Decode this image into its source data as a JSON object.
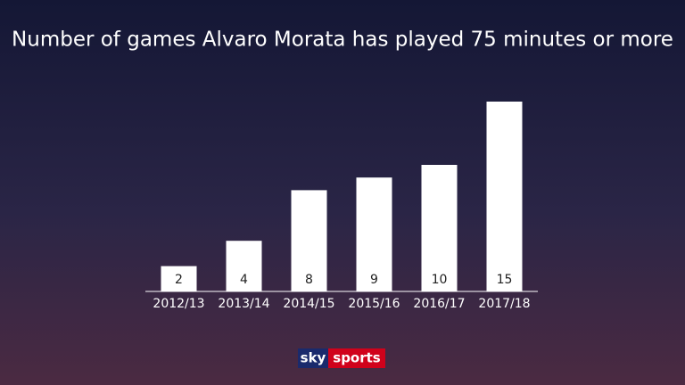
{
  "chart_data": {
    "type": "bar",
    "title": "Number of games Alvaro Morata has played 75 minutes or more",
    "categories": [
      "2012/13",
      "2013/14",
      "2014/15",
      "2015/16",
      "2016/17",
      "2017/18"
    ],
    "values": [
      2,
      4,
      8,
      9,
      10,
      15
    ],
    "color": "#ffffff"
  },
  "logo": {
    "brand": "sky",
    "product": "sports"
  }
}
